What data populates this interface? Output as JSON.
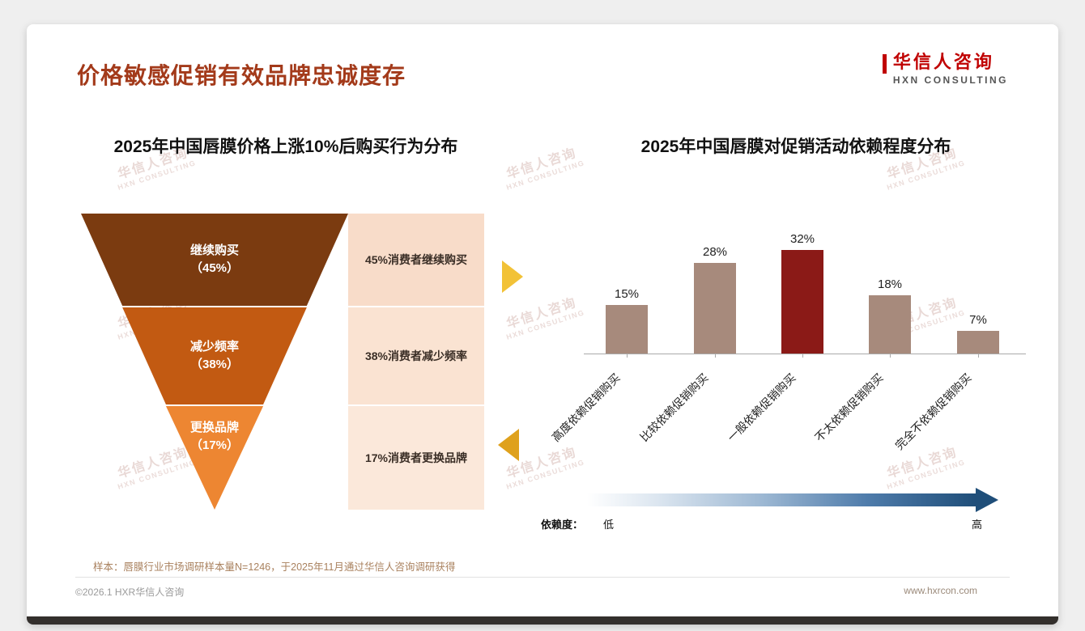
{
  "page": {
    "title": "价格敏感促销有效品牌忠诚度存",
    "logo": {
      "cn": "华信人咨询",
      "en": "HXN CONSULTING"
    },
    "watermark": {
      "cn": "华信人咨询",
      "en": "HXN CONSULTING"
    },
    "footnote": "样本：唇膜行业市场调研样本量N=1246，于2025年11月通过华信人咨询调研获得",
    "footer": {
      "left": "©2026.1 HXR华信人咨询",
      "right": "www.hxrcon.com"
    }
  },
  "chart_data": [
    {
      "type": "funnel",
      "title": "2025年中国唇膜价格上涨10%后购买行为分布",
      "segments": [
        {
          "label": "继续购买",
          "pct_label": "（45%）",
          "value": 45,
          "annotation": "45%消费者继续购买",
          "color": "#7b3b10"
        },
        {
          "label": "减少频率",
          "pct_label": "（38%）",
          "value": 38,
          "annotation": "38%消费者减少频率",
          "color": "#c25a12"
        },
        {
          "label": "更换品牌",
          "pct_label": "（17%）",
          "value": 17,
          "annotation": "17%消费者更换品牌",
          "color": "#ed8632"
        }
      ]
    },
    {
      "type": "bar",
      "title": "2025年中国唇膜对促销活动依赖程度分布",
      "categories": [
        "高度依赖促销购买",
        "比较依赖促销购买",
        "一般依赖促销购买",
        "不太依赖促销购买",
        "完全不依赖促销购买"
      ],
      "values": [
        15,
        28,
        32,
        18,
        7
      ],
      "value_labels": [
        "15%",
        "28%",
        "32%",
        "18%",
        "7%"
      ],
      "bar_colors": [
        "#a78a7c",
        "#a78a7c",
        "#8b1a17",
        "#a78a7c",
        "#a78a7c"
      ],
      "highlight_index": 2,
      "ylim": [
        0,
        35
      ],
      "grid": false,
      "dependency_axis": {
        "label": "依赖度：",
        "low": "低",
        "high": "高"
      }
    }
  ]
}
